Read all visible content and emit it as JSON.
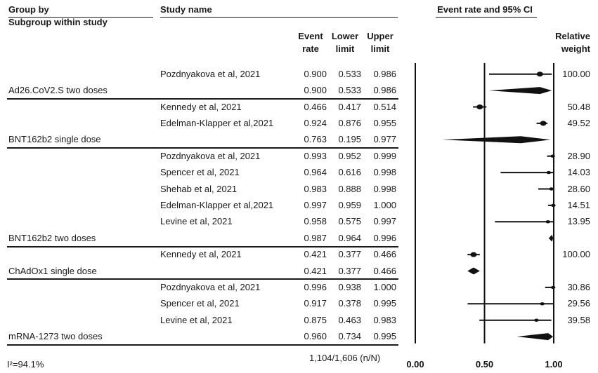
{
  "header": {
    "group_by": "Group by",
    "subgroup_within_study": "Subgroup within study",
    "study_name": "Study name",
    "event_rate": [
      "Event",
      "rate"
    ],
    "lower_limit": [
      "Lower",
      "limit"
    ],
    "upper_limit": [
      "Upper",
      "limit"
    ],
    "ci_title": "Event rate and 95% CI",
    "relative_weight": [
      "Relative",
      "weight"
    ]
  },
  "footer": {
    "heterogeneity": "I²=94.1%",
    "totals": "1,104/1,606 (n/N)"
  },
  "chart_data": {
    "type": "forest",
    "title": "Event rate and 95% CI",
    "xlim": [
      0.0,
      1.0
    ],
    "x_ticks": [
      "0.00",
      "0.50",
      "1.00"
    ],
    "rows": [
      {
        "kind": "study",
        "name": "Pozdnyakova et al, 2021",
        "rate": "0.900",
        "lower": "0.533",
        "upper": "0.986",
        "weight": "100.00",
        "r": 0.9,
        "l": 0.533,
        "u": 0.986
      },
      {
        "kind": "summary",
        "name": "Ad26.CoV2.S two doses",
        "rate": "0.900",
        "lower": "0.533",
        "upper": "0.986",
        "r": 0.9,
        "l": 0.533,
        "u": 0.986
      },
      {
        "kind": "study",
        "name": "Kennedy et al, 2021",
        "rate": "0.466",
        "lower": "0.417",
        "upper": "0.514",
        "weight": "50.48",
        "r": 0.466,
        "l": 0.417,
        "u": 0.514
      },
      {
        "kind": "study",
        "name": "Edelman-Klapper et al,2021",
        "rate": "0.924",
        "lower": "0.876",
        "upper": "0.955",
        "weight": "49.52",
        "r": 0.924,
        "l": 0.876,
        "u": 0.955
      },
      {
        "kind": "summary",
        "name": "BNT162b2 single dose",
        "rate": "0.763",
        "lower": "0.195",
        "upper": "0.977",
        "r": 0.763,
        "l": 0.195,
        "u": 0.977
      },
      {
        "kind": "study",
        "name": "Pozdnyakova et al, 2021",
        "rate": "0.993",
        "lower": "0.952",
        "upper": "0.999",
        "weight": "28.90",
        "r": 0.993,
        "l": 0.952,
        "u": 0.999
      },
      {
        "kind": "study",
        "name": "Spencer et al, 2021",
        "rate": "0.964",
        "lower": "0.616",
        "upper": "0.998",
        "weight": "14.03",
        "r": 0.964,
        "l": 0.616,
        "u": 0.998
      },
      {
        "kind": "study",
        "name": "Shehab et al, 2021",
        "rate": "0.983",
        "lower": "0.888",
        "upper": "0.998",
        "weight": "28.60",
        "r": 0.983,
        "l": 0.888,
        "u": 0.998
      },
      {
        "kind": "study",
        "name": "Edelman-Klapper et al,2021",
        "rate": "0.997",
        "lower": "0.959",
        "upper": "1.000",
        "weight": "14.51",
        "r": 0.997,
        "l": 0.959,
        "u": 1.0
      },
      {
        "kind": "study",
        "name": "Levine et al, 2021",
        "rate": "0.958",
        "lower": "0.575",
        "upper": "0.997",
        "weight": "13.95",
        "r": 0.958,
        "l": 0.575,
        "u": 0.997
      },
      {
        "kind": "summary",
        "name": "BNT162b2 two doses",
        "rate": "0.987",
        "lower": "0.964",
        "upper": "0.996",
        "r": 0.987,
        "l": 0.964,
        "u": 0.996
      },
      {
        "kind": "study",
        "name": "Kennedy et al, 2021",
        "rate": "0.421",
        "lower": "0.377",
        "upper": "0.466",
        "weight": "100.00",
        "r": 0.421,
        "l": 0.377,
        "u": 0.466
      },
      {
        "kind": "summary",
        "name": "ChAdOx1 single dose",
        "rate": "0.421",
        "lower": "0.377",
        "upper": "0.466",
        "r": 0.421,
        "l": 0.377,
        "u": 0.466
      },
      {
        "kind": "study",
        "name": "Pozdnyakova et al, 2021",
        "rate": "0.996",
        "lower": "0.938",
        "upper": "1.000",
        "weight": "30.86",
        "r": 0.996,
        "l": 0.938,
        "u": 1.0
      },
      {
        "kind": "study",
        "name": "Spencer et al, 2021",
        "rate": "0.917",
        "lower": "0.378",
        "upper": "0.995",
        "weight": "29.56",
        "r": 0.917,
        "l": 0.378,
        "u": 0.995
      },
      {
        "kind": "study",
        "name": "Levine et al, 2021",
        "rate": "0.875",
        "lower": "0.463",
        "upper": "0.983",
        "weight": "39.58",
        "r": 0.875,
        "l": 0.463,
        "u": 0.983
      },
      {
        "kind": "summary",
        "name": "mRNA-1273 two doses",
        "rate": "0.960",
        "lower": "0.734",
        "upper": "0.995",
        "r": 0.96,
        "l": 0.734,
        "u": 0.995
      }
    ]
  }
}
